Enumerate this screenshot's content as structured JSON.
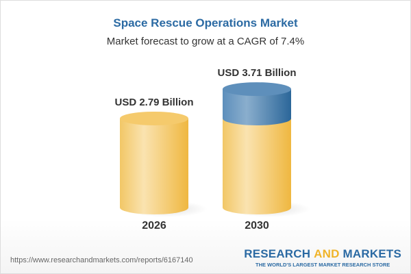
{
  "title": "Space Rescue Operations Market",
  "subtitle": "Market forecast to grow at a CAGR of 7.4%",
  "chart_data": {
    "type": "bar",
    "style": "3d-cylinder",
    "categories": [
      "2026",
      "2030"
    ],
    "values": [
      2.79,
      3.71
    ],
    "data_labels": [
      "USD 2.79 Billion",
      "USD 3.71 Billion"
    ],
    "unit": "USD Billion",
    "cagr": "7.4%",
    "colors": {
      "base": "#f2c55c",
      "growth": "#4f86b5"
    }
  },
  "footer": {
    "url": "https://www.researchandmarkets.com/reports/6167140",
    "logo_part1": "RESEARCH ",
    "logo_part2": "AND",
    "logo_part3": " MARKETS",
    "tagline": "THE WORLD'S LARGEST MARKET RESEARCH STORE"
  }
}
